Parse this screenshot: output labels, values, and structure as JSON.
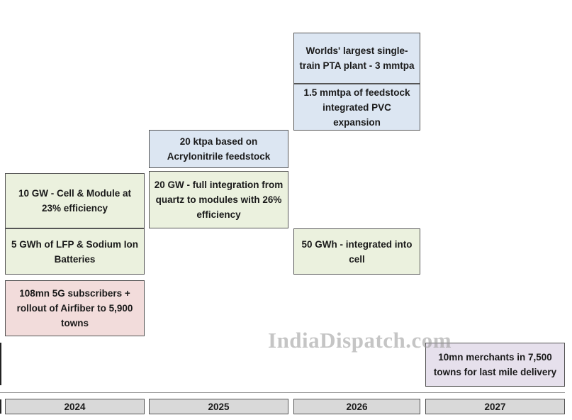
{
  "boxes": {
    "cell_module_2024": "10 GW - Cell & Module at 23% efficiency",
    "battery_2024": "5 GWh of LFP & Sodium Ion Batteries",
    "telecom_2024": "108mn 5G subscribers + rollout of Airfiber to 5,900 towns",
    "carbon_fibre_2025": "20 ktpa based on Acrylonitrile feedstock",
    "solar_2025": "20 GW - full integration from quartz to modules with 26% efficiency",
    "pta_2026": "Worlds' largest single-train PTA plant - 3 mmtpa",
    "pvc_2026": "1.5 mmtpa of feedstock integrated PVC expansion",
    "battery_2026": "50 GWh - integrated into cell",
    "retail_2027": "10mn merchants in 7,500 towns for last mile delivery"
  },
  "years": [
    "2024",
    "2025",
    "2026",
    "2027"
  ],
  "watermark": "IndiaDispatch.com",
  "colors": {
    "green": "#ebf1de",
    "blue": "#dce6f2",
    "red": "#f2dcdb",
    "purple": "#e6e0ec",
    "year_bar": "#d9d9d9"
  }
}
